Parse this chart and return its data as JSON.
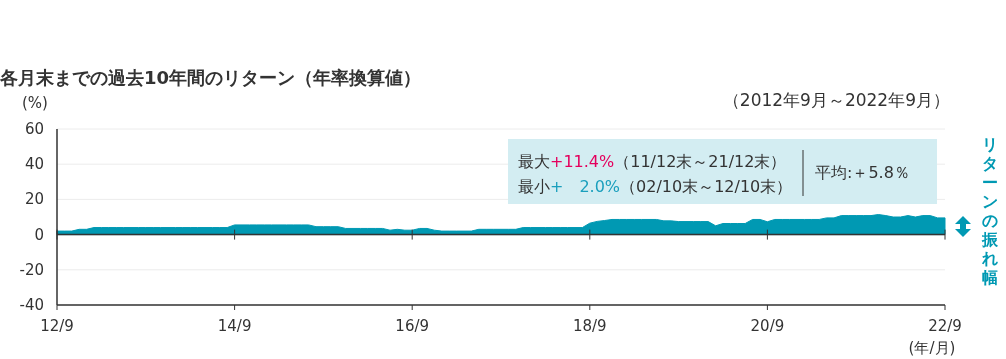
{
  "chart_data": {
    "type": "area",
    "title": "各月末までの過去10年間のリターン（年率換算値）",
    "subtitle": "（2012年9月～2022年9月）",
    "ylabel": "(%)",
    "xlabel": "(年/月)",
    "categories": [
      "12/9",
      null,
      null,
      null,
      null,
      null,
      null,
      null,
      null,
      null,
      null,
      null,
      null,
      null,
      null,
      null,
      null,
      null,
      null,
      null,
      null,
      null,
      null,
      null,
      "14/9",
      null,
      null,
      null,
      null,
      null,
      null,
      null,
      null,
      null,
      null,
      null,
      null,
      null,
      null,
      null,
      null,
      null,
      null,
      null,
      null,
      null,
      null,
      null,
      "16/9",
      null,
      null,
      null,
      null,
      null,
      null,
      null,
      null,
      null,
      null,
      null,
      null,
      null,
      null,
      null,
      null,
      null,
      null,
      null,
      null,
      null,
      null,
      null,
      "18/9",
      null,
      null,
      null,
      null,
      null,
      null,
      null,
      null,
      null,
      null,
      null,
      null,
      null,
      null,
      null,
      null,
      null,
      null,
      null,
      null,
      null,
      null,
      null,
      "20/9",
      null,
      null,
      null,
      null,
      null,
      null,
      null,
      null,
      null,
      null,
      null,
      null,
      null,
      null,
      null,
      null,
      null,
      null,
      null,
      null,
      null,
      null,
      null,
      "22/9"
    ],
    "values": [
      2.0,
      2.0,
      2.0,
      3,
      3,
      4,
      4,
      4,
      4,
      4,
      4,
      4,
      4,
      4,
      4,
      4,
      4,
      4,
      4,
      4,
      4,
      4,
      4,
      4,
      5.5,
      5.5,
      5.5,
      5.5,
      5.5,
      5.5,
      5.5,
      5.5,
      5.5,
      5.5,
      5.5,
      4.5,
      4.5,
      4.5,
      4.5,
      3.5,
      3.5,
      3.5,
      3.5,
      3.5,
      3.5,
      2.5,
      3,
      2.5,
      2.5,
      3.5,
      3.5,
      2.5,
      2,
      2,
      2,
      2,
      2,
      3,
      3,
      3,
      3,
      3,
      3,
      4,
      4,
      4,
      4,
      4,
      4,
      4,
      4,
      4,
      6.5,
      7.5,
      8,
      8.6,
      8.6,
      8.6,
      8.6,
      8.6,
      8.6,
      8.6,
      7.8,
      7.8,
      7.4,
      7.4,
      7.4,
      7.4,
      7.4,
      5,
      6.3,
      6.3,
      6.3,
      6.3,
      8.6,
      8.6,
      7.3,
      8.6,
      8.6,
      8.6,
      8.6,
      8.6,
      8.6,
      8.6,
      9.5,
      9.5,
      10.8,
      10.8,
      10.8,
      10.8,
      10.8,
      11.4,
      10.8,
      10,
      10,
      10.8,
      10,
      10.8,
      10.8,
      9.5,
      9.5
    ],
    "color": "#0099b3",
    "ylim": [
      -40,
      60
    ],
    "yticks": [
      -40,
      -20,
      0,
      20,
      40,
      60
    ],
    "grid": "y",
    "annotations": [
      "最大",
      "+11.4%",
      "（11/12末～21/12末）",
      "最小",
      "+　2.0%",
      "（02/10末～12/10末）",
      "平均:＋5.8％",
      "リターンの振れ幅"
    ]
  }
}
